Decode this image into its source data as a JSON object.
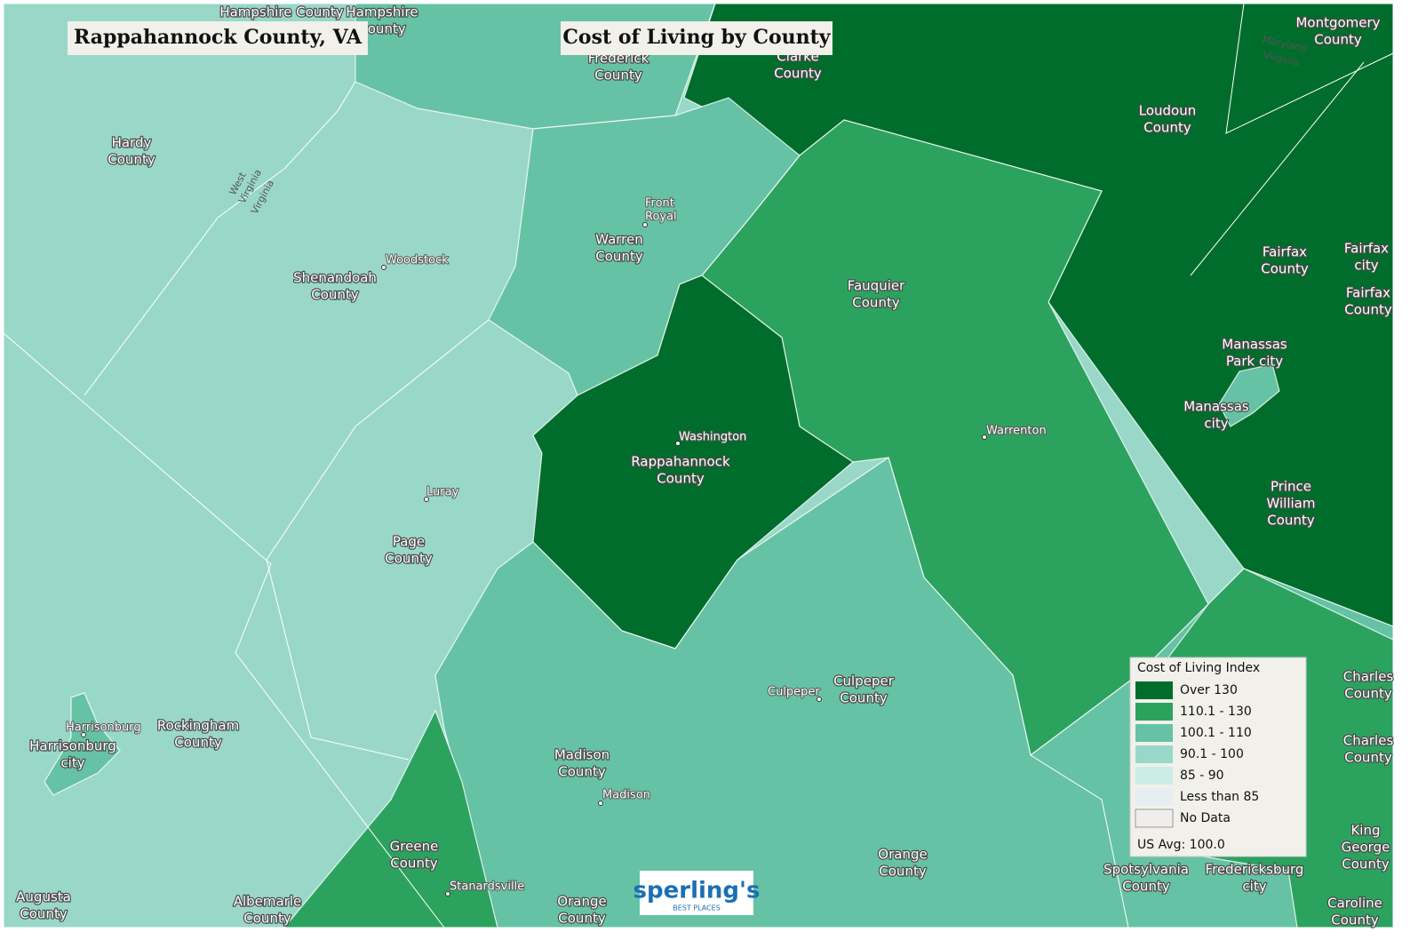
{
  "header": {
    "location": "Rappahannock County, VA",
    "title": "Cost of Living by County"
  },
  "legend": {
    "title": "Cost of Living Index",
    "items": [
      {
        "label": "Over 130",
        "color": "#006d2c"
      },
      {
        "label": "110.1 - 130",
        "color": "#2ca25f"
      },
      {
        "label": "100.1 - 110",
        "color": "#66c2a4"
      },
      {
        "label": "90.1 - 100",
        "color": "#99d8c9"
      },
      {
        "label": "85 - 90",
        "color": "#ccece6"
      },
      {
        "label": "Less than 85",
        "color": "#e5eef3"
      },
      {
        "label": "No Data",
        "color": "#efeeea"
      }
    ],
    "note": "US Avg: 100.0"
  },
  "county_labels": [
    [
      "Hampshire County"
    ],
    [
      "Hampshire",
      "County"
    ],
    [
      "Frederick",
      "County"
    ],
    [
      "Clarke",
      "County"
    ],
    [
      "Montgomery",
      "County"
    ],
    [
      "Loudoun",
      "County"
    ],
    [
      "Hardy",
      "County"
    ],
    [
      "Shenandoah",
      "County"
    ],
    [
      "Warren",
      "County"
    ],
    [
      "Fauquier",
      "County"
    ],
    [
      "Fairfax",
      "County"
    ],
    [
      "Fairfax",
      "city"
    ],
    [
      "Fairfax",
      "County"
    ],
    [
      "Manassas",
      "Park city"
    ],
    [
      "Manassas",
      "city"
    ],
    [
      "Rappahannock",
      "County"
    ],
    [
      "Prince",
      "William",
      "County"
    ],
    [
      "Page",
      "County"
    ],
    [
      "Culpeper",
      "County"
    ],
    [
      "Rockingham",
      "County"
    ],
    [
      "Harrisonburg",
      "city"
    ],
    [
      "Madison",
      "County"
    ],
    [
      "Charles",
      "County"
    ],
    [
      "Charles",
      "County"
    ],
    [
      "Greene",
      "County"
    ],
    [
      "Orange",
      "County"
    ],
    [
      "Spotsylvania",
      "County"
    ],
    [
      "Fredericksburg",
      "city"
    ],
    [
      "King",
      "George",
      "County"
    ],
    [
      "Augusta",
      "County"
    ],
    [
      "Albemarle",
      "County"
    ],
    [
      "Orange",
      "County"
    ],
    [
      "Caroline",
      "County"
    ]
  ],
  "place_labels": [
    [
      "Front",
      "Royal"
    ],
    [
      "Woodstock"
    ],
    [
      "Washington"
    ],
    [
      "Warrenton"
    ],
    [
      "Luray"
    ],
    [
      "Culpeper"
    ],
    [
      "Harrisonburg"
    ],
    [
      "Madison"
    ],
    [
      "Stanardsville"
    ]
  ],
  "state_labels": [
    "West",
    "Virginia",
    "Virginia",
    "Maryland",
    "Virginia"
  ],
  "logo": {
    "name": "sperling's",
    "tagline": "BEST PLACES"
  }
}
